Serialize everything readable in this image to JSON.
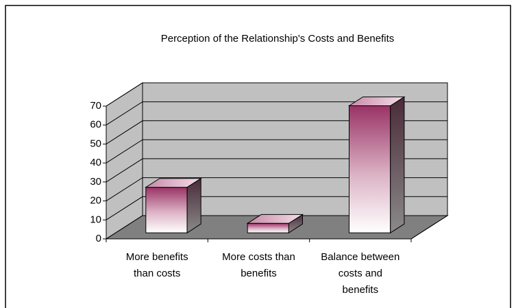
{
  "chart_data": {
    "type": "bar3d",
    "title": "Perception of the Relationship's Costs and Benefits",
    "categories": [
      "More benefits than costs",
      "More costs than benefits",
      "Balance between costs and benefits"
    ],
    "values": [
      24,
      5,
      67
    ],
    "color": "#993366",
    "ylim": [
      0,
      70
    ],
    "yticks": [
      0,
      10,
      20,
      30,
      40,
      50,
      60,
      70
    ],
    "grid": true
  }
}
